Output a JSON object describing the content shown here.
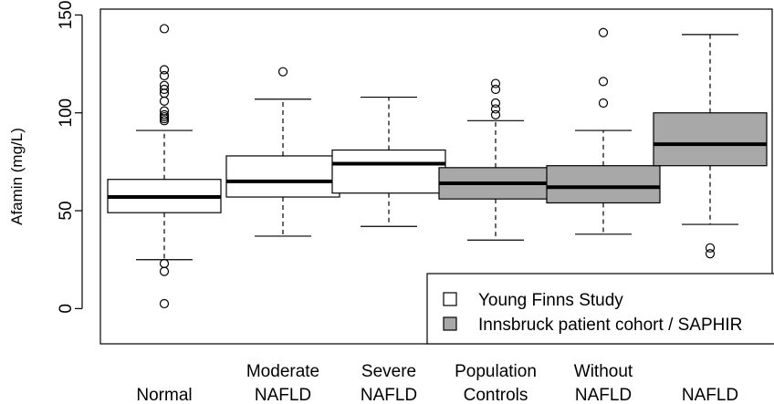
{
  "chart_data": {
    "type": "boxplot",
    "ylabel": "Afamin (mg/L)",
    "ylim": [
      -18,
      153
    ],
    "yticks": [
      0,
      50,
      100,
      150
    ],
    "categories": [
      [
        "",
        "Normal"
      ],
      [
        "Moderate",
        "NAFLD"
      ],
      [
        "Severe",
        "NAFLD"
      ],
      [
        "Population",
        "Controls"
      ],
      [
        "Without",
        "NAFLD"
      ],
      [
        "",
        "NAFLD"
      ]
    ],
    "boxes": [
      {
        "group": "Young Finns Study",
        "whisker_low": 25,
        "q1": 49,
        "median": 57,
        "q3": 66,
        "whisker_high": 91,
        "outliers": [
          143,
          122,
          119,
          114,
          112,
          110,
          106,
          101,
          99,
          98,
          97,
          96,
          23,
          19,
          2.5
        ]
      },
      {
        "group": "Young Finns Study",
        "whisker_low": 37,
        "q1": 57,
        "median": 65,
        "q3": 78,
        "whisker_high": 107,
        "outliers": [
          121
        ]
      },
      {
        "group": "Young Finns Study",
        "whisker_low": 42,
        "q1": 59,
        "median": 74,
        "q3": 81,
        "whisker_high": 108,
        "outliers": []
      },
      {
        "group": "Innsbruck patient cohort / SAPHIR",
        "whisker_low": 35,
        "q1": 56,
        "median": 64,
        "q3": 72,
        "whisker_high": 96,
        "outliers": [
          115,
          112,
          105,
          102,
          99
        ]
      },
      {
        "group": "Innsbruck patient cohort / SAPHIR",
        "whisker_low": 38,
        "q1": 54,
        "median": 62,
        "q3": 73,
        "whisker_high": 91,
        "outliers": [
          141,
          116,
          105
        ]
      },
      {
        "group": "Innsbruck patient cohort / SAPHIR",
        "whisker_low": 43,
        "q1": 73,
        "median": 84,
        "q3": 100,
        "whisker_high": 140,
        "outliers": [
          31,
          28
        ]
      }
    ],
    "legend": [
      {
        "label": "Young Finns Study",
        "color": "#ffffff"
      },
      {
        "label": "Innsbruck patient cohort / SAPHIR",
        "color": "#a8a8a8"
      }
    ],
    "legend_position": "bottom-right",
    "grid": false
  }
}
